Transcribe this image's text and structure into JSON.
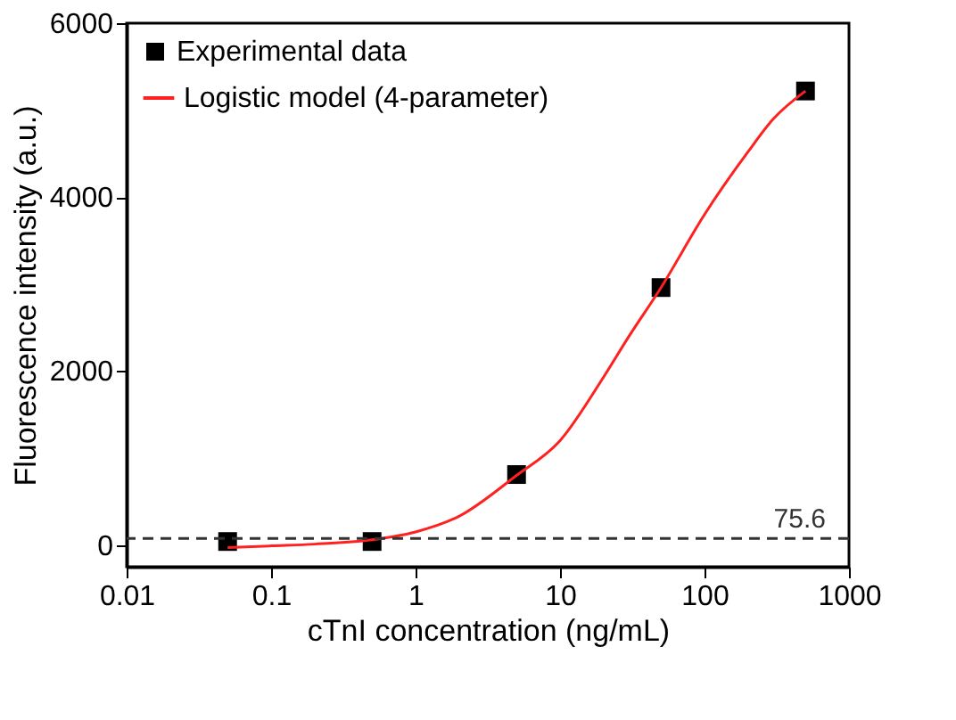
{
  "chart_data": {
    "type": "scatter",
    "xlabel": "cTnI concentration (ng/mL)",
    "ylabel": "Fluorescence intensity (a.u.)",
    "log": "x",
    "grid": false,
    "legend": "top left",
    "marker": "square",
    "xlim": [
      0.01,
      1000
    ],
    "xticks": [
      0.01,
      0.1,
      1,
      10,
      100,
      1000
    ],
    "ylim": [
      -250,
      6000
    ],
    "yticks": [
      0,
      2000,
      4000,
      6000
    ],
    "series": [
      {
        "name": "Experimental data",
        "color": "#000000",
        "x": [
          0.05,
          0.5,
          5,
          50,
          500
        ],
        "values": [
          40,
          40,
          810,
          2960,
          5220
        ]
      },
      {
        "name": "Logistic model (4-parameter)",
        "color": "#ff2020",
        "type": "line",
        "line_style": "solid",
        "marker": "none",
        "x": [
          0.05,
          0.1,
          0.2,
          0.5,
          1,
          2,
          5,
          10,
          20,
          30,
          50,
          100,
          200,
          300,
          500
        ],
        "values": [
          -30,
          -10,
          10,
          60,
          150,
          330,
          800,
          1200,
          1930,
          2400,
          2960,
          3800,
          4520,
          4900,
          5220
        ]
      }
    ],
    "ref_lines": [
      {
        "axis": "y",
        "value": 75.6,
        "label": "75.6",
        "color": "#333333",
        "line_style": "dashed"
      }
    ]
  }
}
